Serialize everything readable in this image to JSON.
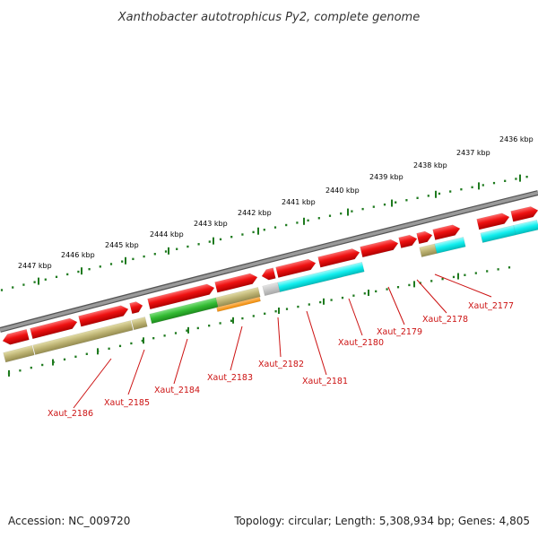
{
  "title": "Xanthobacter autotrophicus Py2, complete genome",
  "footer": {
    "accession": "Accession: NC_009720",
    "summary": "Topology: circular; Length: 5,308,934 bp; Genes: 4,805"
  },
  "colors": {
    "backbone": "#8a8a8a",
    "forward_cds": "#ee1111",
    "reverse_cds": "#bdb373",
    "rna": "#11eeee",
    "tick": "#1e7a1e",
    "label": "#cc1111"
  },
  "scale_labels": [
    "2447 kbp",
    "2446 kbp",
    "2445 kbp",
    "2444 kbp",
    "2443 kbp",
    "2442 kbp",
    "2441 kbp",
    "2440 kbp",
    "2439 kbp",
    "2438 kbp",
    "2437 kbp",
    "2436 kbp"
  ],
  "gene_labels": [
    "Xaut_2186",
    "Xaut_2185",
    "Xaut_2184",
    "Xaut_2183",
    "Xaut_2182",
    "Xaut_2181",
    "Xaut_2180",
    "Xaut_2179",
    "Xaut_2178",
    "Xaut_2177"
  ]
}
